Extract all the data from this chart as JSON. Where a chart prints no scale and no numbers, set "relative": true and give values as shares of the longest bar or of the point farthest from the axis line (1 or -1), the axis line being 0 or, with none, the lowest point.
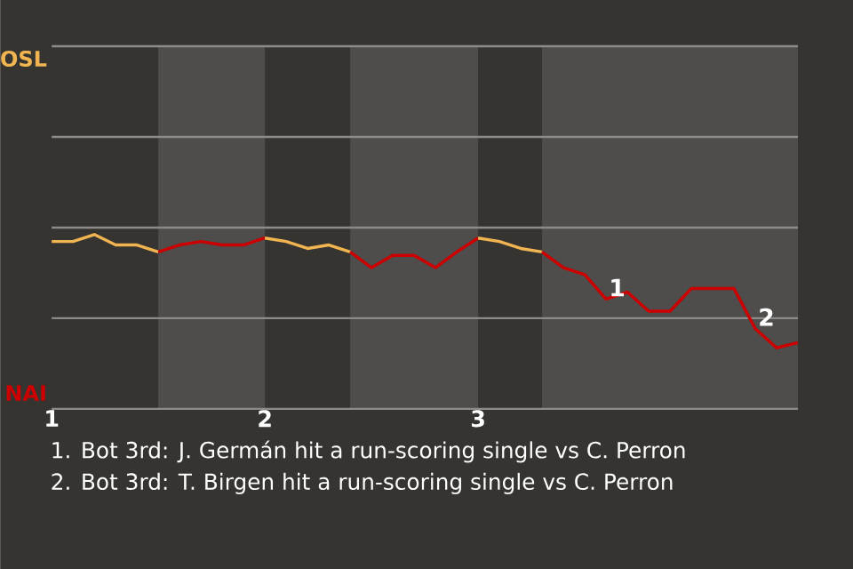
{
  "chart_data": {
    "type": "line",
    "relative": true,
    "series": [
      {
        "color": "#f0b450",
        "x": [
          1,
          1.1,
          1.2,
          1.3,
          1.4,
          1.5
        ],
        "values": [
          0.96,
          0.96,
          1,
          0.94,
          0.94,
          0.9
        ]
      },
      {
        "color": "#cc0000",
        "x": [
          1.5,
          1.6,
          1.7,
          1.8,
          1.9,
          2
        ],
        "values": [
          0.9,
          0.94,
          0.96,
          0.94,
          0.94,
          0.98
        ]
      },
      {
        "color": "#f0b450",
        "x": [
          2,
          2.1,
          2.2,
          2.3,
          2.4
        ],
        "values": [
          0.98,
          0.96,
          0.92,
          0.94,
          0.9
        ]
      },
      {
        "color": "#cc0000",
        "x": [
          2.4,
          2.5,
          2.6,
          2.7,
          2.8,
          2.9,
          3
        ],
        "values": [
          0.9,
          0.81,
          0.88,
          0.88,
          0.81,
          0.9,
          0.98
        ]
      },
      {
        "color": "#f0b450",
        "x": [
          3,
          3.1,
          3.2,
          3.3
        ],
        "values": [
          0.98,
          0.96,
          0.92,
          0.9
        ]
      },
      {
        "color": "#cc0000",
        "x": [
          3.3,
          3.4,
          3.5,
          3.6,
          3.7,
          3.8,
          3.9,
          4,
          4.1,
          4.2,
          4.3,
          4.4,
          4.5
        ],
        "values": [
          0.9,
          0.81,
          0.77,
          0.63,
          0.67,
          0.56,
          0.56,
          0.69,
          0.69,
          0.69,
          0.46,
          0.35,
          0.38
        ]
      }
    ],
    "xlim": [
      1,
      4.5
    ],
    "xticks": [
      1,
      2,
      3
    ],
    "ref_lines": [
      {
        "axis": "y",
        "value": 0.52,
        "color": "#8c8b89"
      },
      {
        "axis": "y",
        "value": 1.04,
        "color": "#8c8b89"
      },
      {
        "axis": "y",
        "value": 1.56,
        "color": "#8c8b89"
      },
      {
        "axis": "y",
        "value": 2.08,
        "color": "#8c8b89"
      }
    ],
    "bands": [
      {
        "axis": "x",
        "from": 1.5,
        "to": 2,
        "color": "#4e4d4b"
      },
      {
        "axis": "x",
        "from": 2.4,
        "to": 3,
        "color": "#4e4d4b"
      },
      {
        "axis": "x",
        "from": 3.3,
        "to": 4.5,
        "color": "#4e4d4b"
      }
    ],
    "annotations": [
      {
        "text": "1",
        "x": 3.6,
        "y": 0.63
      },
      {
        "text": "2",
        "x": 4.3,
        "y": 0.46
      },
      "OSL",
      "NAI",
      "1. Bot 3rd: J. Germán hit a run-scoring single vs C. Perron",
      "2. Bot 3rd: T. Birgen hit a run-scoring single vs C. Perron"
    ]
  }
}
